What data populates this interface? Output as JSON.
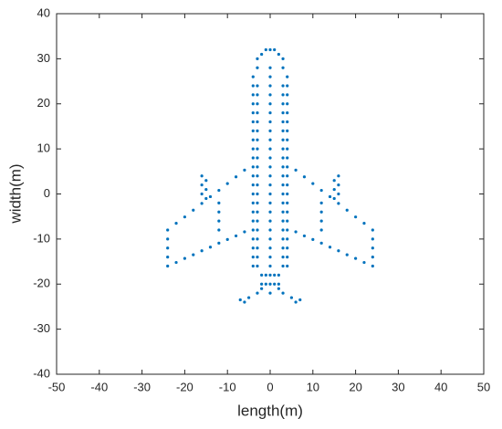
{
  "chart_data": {
    "type": "scatter",
    "xlabel": "length(m)",
    "ylabel": "width(m)",
    "color": "#0072bd",
    "xlim": [
      -50,
      50
    ],
    "ylim": [
      -40,
      40
    ],
    "xticks": [
      -50,
      -40,
      -30,
      -20,
      -10,
      0,
      10,
      20,
      30,
      40,
      50
    ],
    "yticks": [
      -40,
      -30,
      -20,
      -10,
      0,
      10,
      20,
      30,
      40
    ],
    "x": [
      -4,
      -4,
      -4,
      -4,
      -4,
      -4,
      -4,
      -4,
      -4,
      -4,
      -4,
      -4,
      -4,
      -4,
      -4,
      -4,
      -4,
      -4,
      -4,
      -4,
      -4,
      -3,
      -3,
      -3,
      -3,
      -3,
      -3,
      -3,
      -3,
      -3,
      -3,
      -3,
      -3,
      -3,
      -3,
      -3,
      -3,
      -3,
      -3,
      -3,
      -3,
      -3,
      3,
      3,
      3,
      3,
      3,
      3,
      3,
      3,
      3,
      3,
      3,
      3,
      3,
      3,
      3,
      3,
      3,
      3,
      3,
      3,
      3,
      4,
      4,
      4,
      4,
      4,
      4,
      4,
      4,
      4,
      4,
      4,
      4,
      4,
      4,
      4,
      4,
      4,
      4,
      4,
      4,
      4,
      0,
      0,
      0,
      0,
      0,
      0,
      0,
      0,
      0,
      0,
      0,
      0,
      0,
      0,
      0,
      0,
      0,
      0,
      0,
      0,
      0,
      0,
      0,
      0,
      0,
      0,
      -2,
      -1,
      1,
      2,
      -2,
      -1,
      1,
      2,
      -3,
      3,
      -2,
      2,
      -1,
      0,
      1,
      -4,
      4,
      -3,
      3,
      -6,
      -8,
      -10,
      -12,
      -14,
      -16,
      -18,
      -20,
      -22,
      -6,
      -8,
      -10,
      -12,
      -14,
      -16,
      -18,
      -20,
      -22,
      -24,
      -24,
      -24,
      -24,
      -24,
      -16,
      -16,
      -16,
      -15,
      -15,
      -15,
      -12,
      -12,
      -12,
      -12,
      6,
      8,
      10,
      12,
      14,
      16,
      18,
      20,
      22,
      6,
      8,
      10,
      12,
      14,
      16,
      18,
      20,
      22,
      24,
      24,
      24,
      24,
      24,
      16,
      16,
      16,
      15,
      15,
      15,
      12,
      12,
      12,
      12,
      -2,
      -3,
      -5,
      -7,
      -6,
      2,
      3,
      5,
      7,
      6
    ],
    "values": [
      -16,
      -14,
      -12,
      -10,
      -8,
      -6,
      -4,
      -2,
      0,
      2,
      4,
      6,
      8,
      10,
      12,
      14,
      16,
      18,
      20,
      22,
      24,
      -16,
      -14,
      -12,
      -10,
      -8,
      -6,
      -4,
      -2,
      0,
      2,
      4,
      6,
      8,
      10,
      12,
      14,
      16,
      18,
      20,
      22,
      24,
      -16,
      -14,
      -12,
      -10,
      -8,
      -6,
      -4,
      -2,
      0,
      2,
      4,
      6,
      8,
      10,
      12,
      14,
      16,
      18,
      20,
      22,
      24,
      -16,
      -14,
      -12,
      -10,
      -8,
      -6,
      -4,
      -2,
      0,
      2,
      4,
      6,
      8,
      10,
      12,
      14,
      16,
      18,
      20,
      22,
      24,
      -22,
      -20,
      -18,
      -16,
      -14,
      -12,
      -10,
      -8,
      -6,
      -4,
      -2,
      0,
      2,
      4,
      6,
      8,
      10,
      12,
      14,
      16,
      18,
      20,
      22,
      24,
      26,
      28,
      -18,
      -18,
      -18,
      -18,
      -20,
      -20,
      -20,
      -20,
      30,
      30,
      31,
      31,
      32,
      32,
      32,
      26,
      26,
      28,
      28,
      5.3,
      3.8,
      2.3,
      0.8,
      -0.6,
      -2.1,
      -3.6,
      -5.1,
      -6.5,
      -8.4,
      -9.3,
      -10.1,
      -10.9,
      -11.8,
      -12.6,
      -13.5,
      -14.3,
      -15.2,
      -16,
      -14,
      -12,
      -10,
      -8,
      4,
      2,
      0,
      3,
      1,
      -1,
      -2,
      -4,
      -6,
      -8,
      5.3,
      3.8,
      2.3,
      0.8,
      -0.6,
      -2.1,
      -3.6,
      -5.1,
      -6.5,
      -8.4,
      -9.3,
      -10.1,
      -10.9,
      -11.8,
      -12.6,
      -13.5,
      -14.3,
      -15.2,
      -16,
      -14,
      -12,
      -10,
      -8,
      4,
      2,
      0,
      3,
      1,
      -1,
      -2,
      -4,
      -6,
      -8,
      -21,
      -22,
      -23,
      -23.5,
      -24,
      -21,
      -22,
      -23,
      -23.5,
      -24
    ]
  }
}
